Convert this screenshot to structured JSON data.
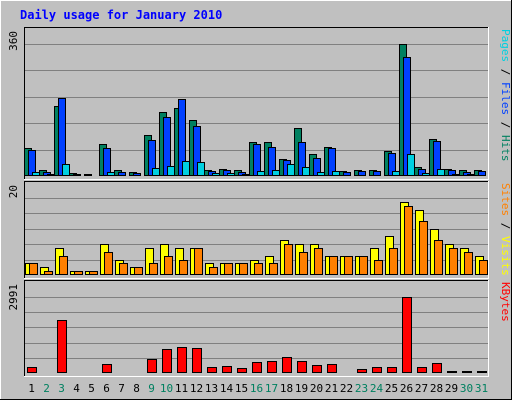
{
  "chart_data": {
    "type": "bar",
    "title": "Daily usage for January 2010",
    "categories": [
      "1",
      "2",
      "3",
      "4",
      "5",
      "6",
      "7",
      "8",
      "9",
      "10",
      "11",
      "12",
      "13",
      "14",
      "15",
      "16",
      "17",
      "18",
      "19",
      "20",
      "21",
      "22",
      "23",
      "24",
      "25",
      "26",
      "27",
      "28",
      "29",
      "30",
      "31"
    ],
    "weekend_days": [
      "2",
      "3",
      "9",
      "10",
      "16",
      "17",
      "23",
      "24",
      "30",
      "31"
    ],
    "panels": [
      {
        "id": "hits_panel",
        "ymax": 360,
        "ymax_label": "360",
        "right_label_parts": [
          {
            "text": "Pages",
            "color": "#00d0e0"
          },
          {
            "text": " / ",
            "color": "#000000"
          },
          {
            "text": "Files",
            "color": "#0040ff"
          },
          {
            "text": " / ",
            "color": "#000000"
          },
          {
            "text": "Hits",
            "color": "#008060"
          }
        ],
        "series": [
          {
            "name": "Hits",
            "color": "#008060",
            "values": [
              75,
              15,
              192,
              7,
              5,
              88,
              15,
              11,
              112,
              175,
              186,
              153,
              17,
              20,
              15,
              93,
              93,
              47,
              130,
              59,
              80,
              14,
              17,
              17,
              68,
              360,
              25,
              100,
              20,
              16,
              17
            ]
          },
          {
            "name": "Files",
            "color": "#0040ff",
            "values": [
              72,
              12,
              213,
              6,
              4,
              75,
              11,
              8,
              97,
              160,
              210,
              137,
              14,
              16,
              12,
              87,
              80,
              43,
              93,
              50,
              75,
              10,
              13,
              13,
              62,
              325,
              19,
              95,
              16,
              12,
              14
            ]
          },
          {
            "name": "Pages",
            "color": "#00d0e0",
            "values": [
              10,
              6,
              34,
              2,
              1,
              12,
              4,
              3,
              22,
              28,
              40,
              37,
              8,
              7,
              5,
              14,
              17,
              33,
              24,
              12,
              13,
              4,
              4,
              4,
              14,
              60,
              9,
              19,
              6,
              5,
              4
            ]
          }
        ]
      },
      {
        "id": "visits_panel",
        "ymax": 20,
        "ymax_label": "20",
        "right_label_parts": [
          {
            "text": "Sites",
            "color": "#ff8000"
          },
          {
            "text": " / ",
            "color": "#000000"
          },
          {
            "text": "Visits",
            "color": "#ffff00"
          }
        ],
        "series": [
          {
            "name": "Visits",
            "color": "#ffff00",
            "values": [
              3,
              2,
              7,
              1,
              1,
              8,
              4,
              2,
              7,
              8,
              7,
              7,
              3,
              3,
              3,
              4,
              5,
              9,
              8,
              8,
              5,
              5,
              5,
              7,
              10,
              19,
              17,
              12,
              8,
              7,
              5
            ]
          },
          {
            "name": "Sites",
            "color": "#ff8000",
            "values": [
              3,
              1,
              5,
              1,
              1,
              6,
              3,
              2,
              3,
              5,
              4,
              7,
              2,
              3,
              3,
              3,
              3,
              8,
              6,
              7,
              5,
              5,
              5,
              4,
              7,
              18,
              14,
              9,
              7,
              6,
              4
            ]
          }
        ]
      },
      {
        "id": "kbytes_panel",
        "ymax": 2991,
        "ymax_label": "2991",
        "right_label_parts": [
          {
            "text": "KBytes",
            "color": "#ff0000"
          }
        ],
        "series": [
          {
            "name": "KBytes",
            "color": "#ff0000",
            "values": [
              235,
              25,
              2068,
              25,
              25,
              363,
              31,
              25,
              555,
              942,
              1026,
              970,
              249,
              287,
              192,
              439,
              468,
              647,
              463,
              305,
              356,
              27,
              143,
              232,
              235,
              2991,
              221,
              385,
              86,
              79,
              76
            ]
          }
        ]
      }
    ]
  },
  "colors": {
    "background": "#c0c0c0",
    "grid": "#808080",
    "title": "#0000ff",
    "axis_label": "#000000",
    "weekday_label": "#000000",
    "weekend_label": "#008060"
  }
}
